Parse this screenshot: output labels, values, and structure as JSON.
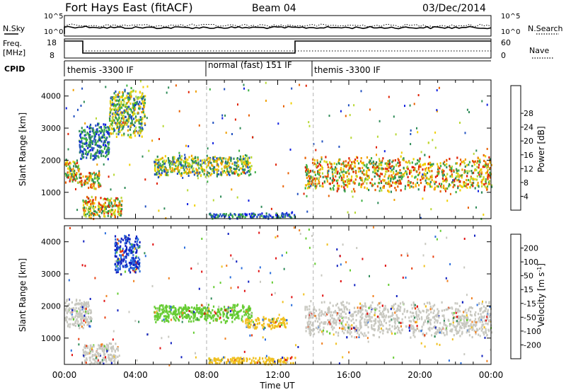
{
  "header": {
    "station": "Fort Hays East (fitACF)",
    "beam": "Beam 04",
    "date": "03/Dec/2014"
  },
  "top_panels": {
    "nsky_label": "N.Sky",
    "nsearch_label": "N.Search",
    "freq_label_line1": "Freq.",
    "freq_label_line2": "[MHz]",
    "nave_label": "Nave",
    "cpid_label": "CPID",
    "noise_ticks": [
      "10^5",
      "10^0"
    ],
    "freq_ticks": [
      "18",
      "8"
    ],
    "nave_ticks": [
      "60",
      "0"
    ]
  },
  "cpid_segments": [
    {
      "label": "themis -3300 IF",
      "start_hour": 0
    },
    {
      "label": "normal (fast) 151 IF",
      "start_hour": 8
    },
    {
      "label": "themis -3300 IF",
      "start_hour": 14
    }
  ],
  "time_axis": {
    "label": "Time UT",
    "ticks": [
      "00:00",
      "04:00",
      "08:00",
      "12:00",
      "16:00",
      "20:00",
      "00:00"
    ],
    "range_hours": [
      0,
      24
    ]
  },
  "range_axis": {
    "label": "Slant Range [km]",
    "ticks": [
      1000,
      2000,
      3000,
      4000
    ],
    "range": [
      180,
      4500
    ]
  },
  "colorbars": {
    "power": {
      "label": "Power [dB]",
      "ticks": [
        "4",
        "8",
        "12",
        "16",
        "20",
        "24",
        "28"
      ],
      "colors": [
        "#1020e0",
        "#2050c0",
        "#2e8b57",
        "#3cb043",
        "#b8d836",
        "#f0d000",
        "#f0a000",
        "#e86000",
        "#e02000"
      ]
    },
    "velocity": {
      "label": "Velocity [m s",
      "label_sup": "-1",
      "label_end": "]",
      "ticks": [
        "200",
        "100",
        "50",
        "15",
        "-15",
        "-50",
        "-100",
        "-200"
      ],
      "colors": [
        "#1020c0",
        "#2a6edc",
        "#2e8b57",
        "#66cc33",
        "#c8c8c0",
        "#f0c020",
        "#f08020",
        "#e84010",
        "#e01010"
      ]
    }
  },
  "chart_data": [
    {
      "type": "heatmap",
      "name": "Power",
      "x_unit": "hour UT",
      "y_unit": "km",
      "regions": [
        {
          "t": [
            0.0,
            0.8
          ],
          "r": [
            1300,
            2100
          ],
          "level": "high"
        },
        {
          "t": [
            0.8,
            2.0
          ],
          "r": [
            1100,
            1700
          ],
          "level": "high"
        },
        {
          "t": [
            1.0,
            3.2
          ],
          "r": [
            200,
            900
          ],
          "level": "high"
        },
        {
          "t": [
            0.8,
            2.5
          ],
          "r": [
            2000,
            3200
          ],
          "level": "low"
        },
        {
          "t": [
            2.5,
            4.5
          ],
          "r": [
            2700,
            4300
          ],
          "level": "mid"
        },
        {
          "t": [
            5.0,
            10.5
          ],
          "r": [
            1500,
            2200
          ],
          "level": "mid"
        },
        {
          "t": [
            8.0,
            13.0
          ],
          "r": [
            200,
            400
          ],
          "level": "low"
        },
        {
          "t": [
            13.5,
            24.0
          ],
          "r": [
            1000,
            2200
          ],
          "level": "high"
        }
      ]
    },
    {
      "type": "heatmap",
      "name": "Velocity",
      "x_unit": "hour UT",
      "y_unit": "km",
      "regions": [
        {
          "t": [
            0.0,
            1.5
          ],
          "r": [
            1300,
            2300
          ],
          "level": "-15..15"
        },
        {
          "t": [
            1.0,
            3.0
          ],
          "r": [
            200,
            900
          ],
          "level": "-15..15"
        },
        {
          "t": [
            2.8,
            4.2
          ],
          "r": [
            3000,
            4300
          ],
          "level": "100..200"
        },
        {
          "t": [
            5.0,
            10.5
          ],
          "r": [
            1500,
            2100
          ],
          "level": "15..50"
        },
        {
          "t": [
            10.0,
            12.5
          ],
          "r": [
            1300,
            1700
          ],
          "level": "-50..-15"
        },
        {
          "t": [
            8.0,
            13.0
          ],
          "r": [
            200,
            450
          ],
          "level": "-50..-15"
        },
        {
          "t": [
            13.5,
            24.0
          ],
          "r": [
            1000,
            2200
          ],
          "level": "-15..15"
        }
      ]
    }
  ]
}
